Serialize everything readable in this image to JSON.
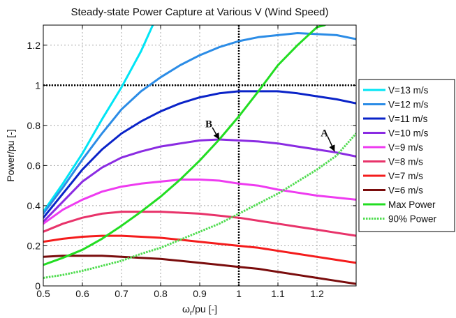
{
  "chart_data": {
    "type": "line",
    "title": "Steady-state Power Capture at Various V (Wind Speed)",
    "xlabel": "ω_r/pu [-]",
    "xlabel_main": "ω",
    "xlabel_sub": "r",
    "xlabel_rest": "/pu [-]",
    "ylabel": "Power/pu [-]",
    "xlim": [
      0.5,
      1.3
    ],
    "ylim": [
      0,
      1.3
    ],
    "xticks": [
      0.5,
      0.6,
      0.7,
      0.8,
      0.9,
      1,
      1.1,
      1.2
    ],
    "xtick_labels": [
      "0.5",
      "0.6",
      "0.7",
      "0.8",
      "0.9",
      "1",
      "1.1",
      "1.2"
    ],
    "yticks": [
      0,
      0.2,
      0.4,
      0.6,
      0.8,
      1,
      1.2
    ],
    "ytick_labels": [
      "0",
      "0.2",
      "0.4",
      "0.6",
      "0.8",
      "1",
      "1.2"
    ],
    "grid": true,
    "legend_position": "outside-right",
    "reference_lines": [
      {
        "orientation": "horizontal",
        "value": 1,
        "color": "#000000",
        "style": "dotted"
      },
      {
        "orientation": "vertical",
        "value": 1,
        "color": "#000000",
        "style": "dotted"
      }
    ],
    "series": [
      {
        "name": "V=13 m/s",
        "color": "#00e5f5",
        "style": "solid",
        "x": [
          0.5,
          0.55,
          0.6,
          0.65,
          0.7,
          0.75,
          0.78
        ],
        "y": [
          0.37,
          0.51,
          0.66,
          0.83,
          0.99,
          1.17,
          1.3
        ]
      },
      {
        "name": "V=12 m/s",
        "color": "#2b8ce6",
        "style": "solid",
        "x": [
          0.5,
          0.55,
          0.6,
          0.65,
          0.7,
          0.75,
          0.8,
          0.85,
          0.9,
          0.95,
          1.0,
          1.05,
          1.1,
          1.15,
          1.2,
          1.25,
          1.3
        ],
        "y": [
          0.36,
          0.49,
          0.63,
          0.76,
          0.88,
          0.97,
          1.04,
          1.1,
          1.15,
          1.19,
          1.22,
          1.24,
          1.25,
          1.26,
          1.255,
          1.25,
          1.23
        ]
      },
      {
        "name": "V=11 m/s",
        "color": "#0a23c8",
        "style": "solid",
        "x": [
          0.5,
          0.55,
          0.6,
          0.65,
          0.7,
          0.75,
          0.8,
          0.85,
          0.9,
          0.95,
          1.0,
          1.05,
          1.1,
          1.15,
          1.2,
          1.25,
          1.3
        ],
        "y": [
          0.34,
          0.46,
          0.58,
          0.68,
          0.76,
          0.82,
          0.87,
          0.91,
          0.94,
          0.96,
          0.97,
          0.97,
          0.97,
          0.96,
          0.945,
          0.93,
          0.91
        ]
      },
      {
        "name": "V=10 m/s",
        "color": "#8a2be2",
        "style": "solid",
        "x": [
          0.5,
          0.55,
          0.6,
          0.65,
          0.7,
          0.75,
          0.8,
          0.85,
          0.9,
          0.95,
          1.0,
          1.05,
          1.1,
          1.15,
          1.2,
          1.25,
          1.3
        ],
        "y": [
          0.32,
          0.42,
          0.52,
          0.59,
          0.64,
          0.67,
          0.695,
          0.71,
          0.725,
          0.73,
          0.725,
          0.72,
          0.71,
          0.695,
          0.68,
          0.665,
          0.645
        ]
      },
      {
        "name": "V=9 m/s",
        "color": "#ee3bf0",
        "style": "solid",
        "x": [
          0.5,
          0.55,
          0.6,
          0.65,
          0.7,
          0.75,
          0.8,
          0.85,
          0.9,
          0.95,
          1.0,
          1.05,
          1.1,
          1.15,
          1.2,
          1.25,
          1.3
        ],
        "y": [
          0.31,
          0.38,
          0.43,
          0.47,
          0.495,
          0.51,
          0.52,
          0.53,
          0.53,
          0.525,
          0.51,
          0.5,
          0.48,
          0.465,
          0.45,
          0.44,
          0.43
        ]
      },
      {
        "name": "V=8 m/s",
        "color": "#e8336a",
        "style": "solid",
        "x": [
          0.5,
          0.55,
          0.6,
          0.65,
          0.7,
          0.75,
          0.8,
          0.85,
          0.9,
          0.95,
          1.0,
          1.05,
          1.1,
          1.15,
          1.2,
          1.25,
          1.3
        ],
        "y": [
          0.27,
          0.31,
          0.34,
          0.36,
          0.37,
          0.37,
          0.37,
          0.365,
          0.36,
          0.35,
          0.34,
          0.325,
          0.31,
          0.295,
          0.28,
          0.265,
          0.25
        ]
      },
      {
        "name": "V=7 m/s",
        "color": "#f41c1c",
        "style": "solid",
        "x": [
          0.5,
          0.55,
          0.6,
          0.65,
          0.7,
          0.75,
          0.8,
          0.85,
          0.9,
          0.95,
          1.0,
          1.05,
          1.1,
          1.15,
          1.2,
          1.25,
          1.3
        ],
        "y": [
          0.22,
          0.235,
          0.245,
          0.25,
          0.25,
          0.245,
          0.24,
          0.23,
          0.22,
          0.21,
          0.2,
          0.19,
          0.175,
          0.16,
          0.145,
          0.13,
          0.115
        ]
      },
      {
        "name": "V=6 m/s",
        "color": "#7a0c0c",
        "style": "solid",
        "x": [
          0.5,
          0.55,
          0.6,
          0.65,
          0.7,
          0.75,
          0.8,
          0.85,
          0.9,
          0.95,
          1.0,
          1.05,
          1.1,
          1.15,
          1.2,
          1.25,
          1.3
        ],
        "y": [
          0.145,
          0.15,
          0.15,
          0.15,
          0.145,
          0.14,
          0.135,
          0.125,
          0.115,
          0.105,
          0.095,
          0.085,
          0.07,
          0.055,
          0.04,
          0.025,
          0.01
        ]
      },
      {
        "name": "Max Power",
        "color": "#22dd22",
        "style": "solid",
        "x": [
          0.5,
          0.55,
          0.6,
          0.65,
          0.7,
          0.75,
          0.8,
          0.85,
          0.9,
          0.95,
          1.0,
          1.05,
          1.1,
          1.15,
          1.2,
          1.22
        ],
        "y": [
          0.105,
          0.14,
          0.18,
          0.235,
          0.3,
          0.37,
          0.445,
          0.53,
          0.625,
          0.73,
          0.845,
          0.97,
          1.1,
          1.2,
          1.29,
          1.3
        ]
      },
      {
        "name": "90% Power",
        "color": "#4fdc4f",
        "style": "dotted",
        "x": [
          0.5,
          0.55,
          0.6,
          0.65,
          0.7,
          0.75,
          0.8,
          0.85,
          0.9,
          0.95,
          1.0,
          1.05,
          1.1,
          1.15,
          1.2,
          1.25,
          1.3
        ],
        "y": [
          0.04,
          0.055,
          0.075,
          0.1,
          0.125,
          0.16,
          0.19,
          0.23,
          0.27,
          0.31,
          0.36,
          0.41,
          0.46,
          0.52,
          0.58,
          0.65,
          0.76
        ]
      }
    ],
    "annotations": [
      {
        "text": "B",
        "text_x": 0.925,
        "text_y": 0.79,
        "point_x": 0.95,
        "point_y": 0.73
      },
      {
        "text": "A",
        "text_x": 1.22,
        "text_y": 0.745,
        "point_x": 1.245,
        "point_y": 0.67
      }
    ]
  }
}
